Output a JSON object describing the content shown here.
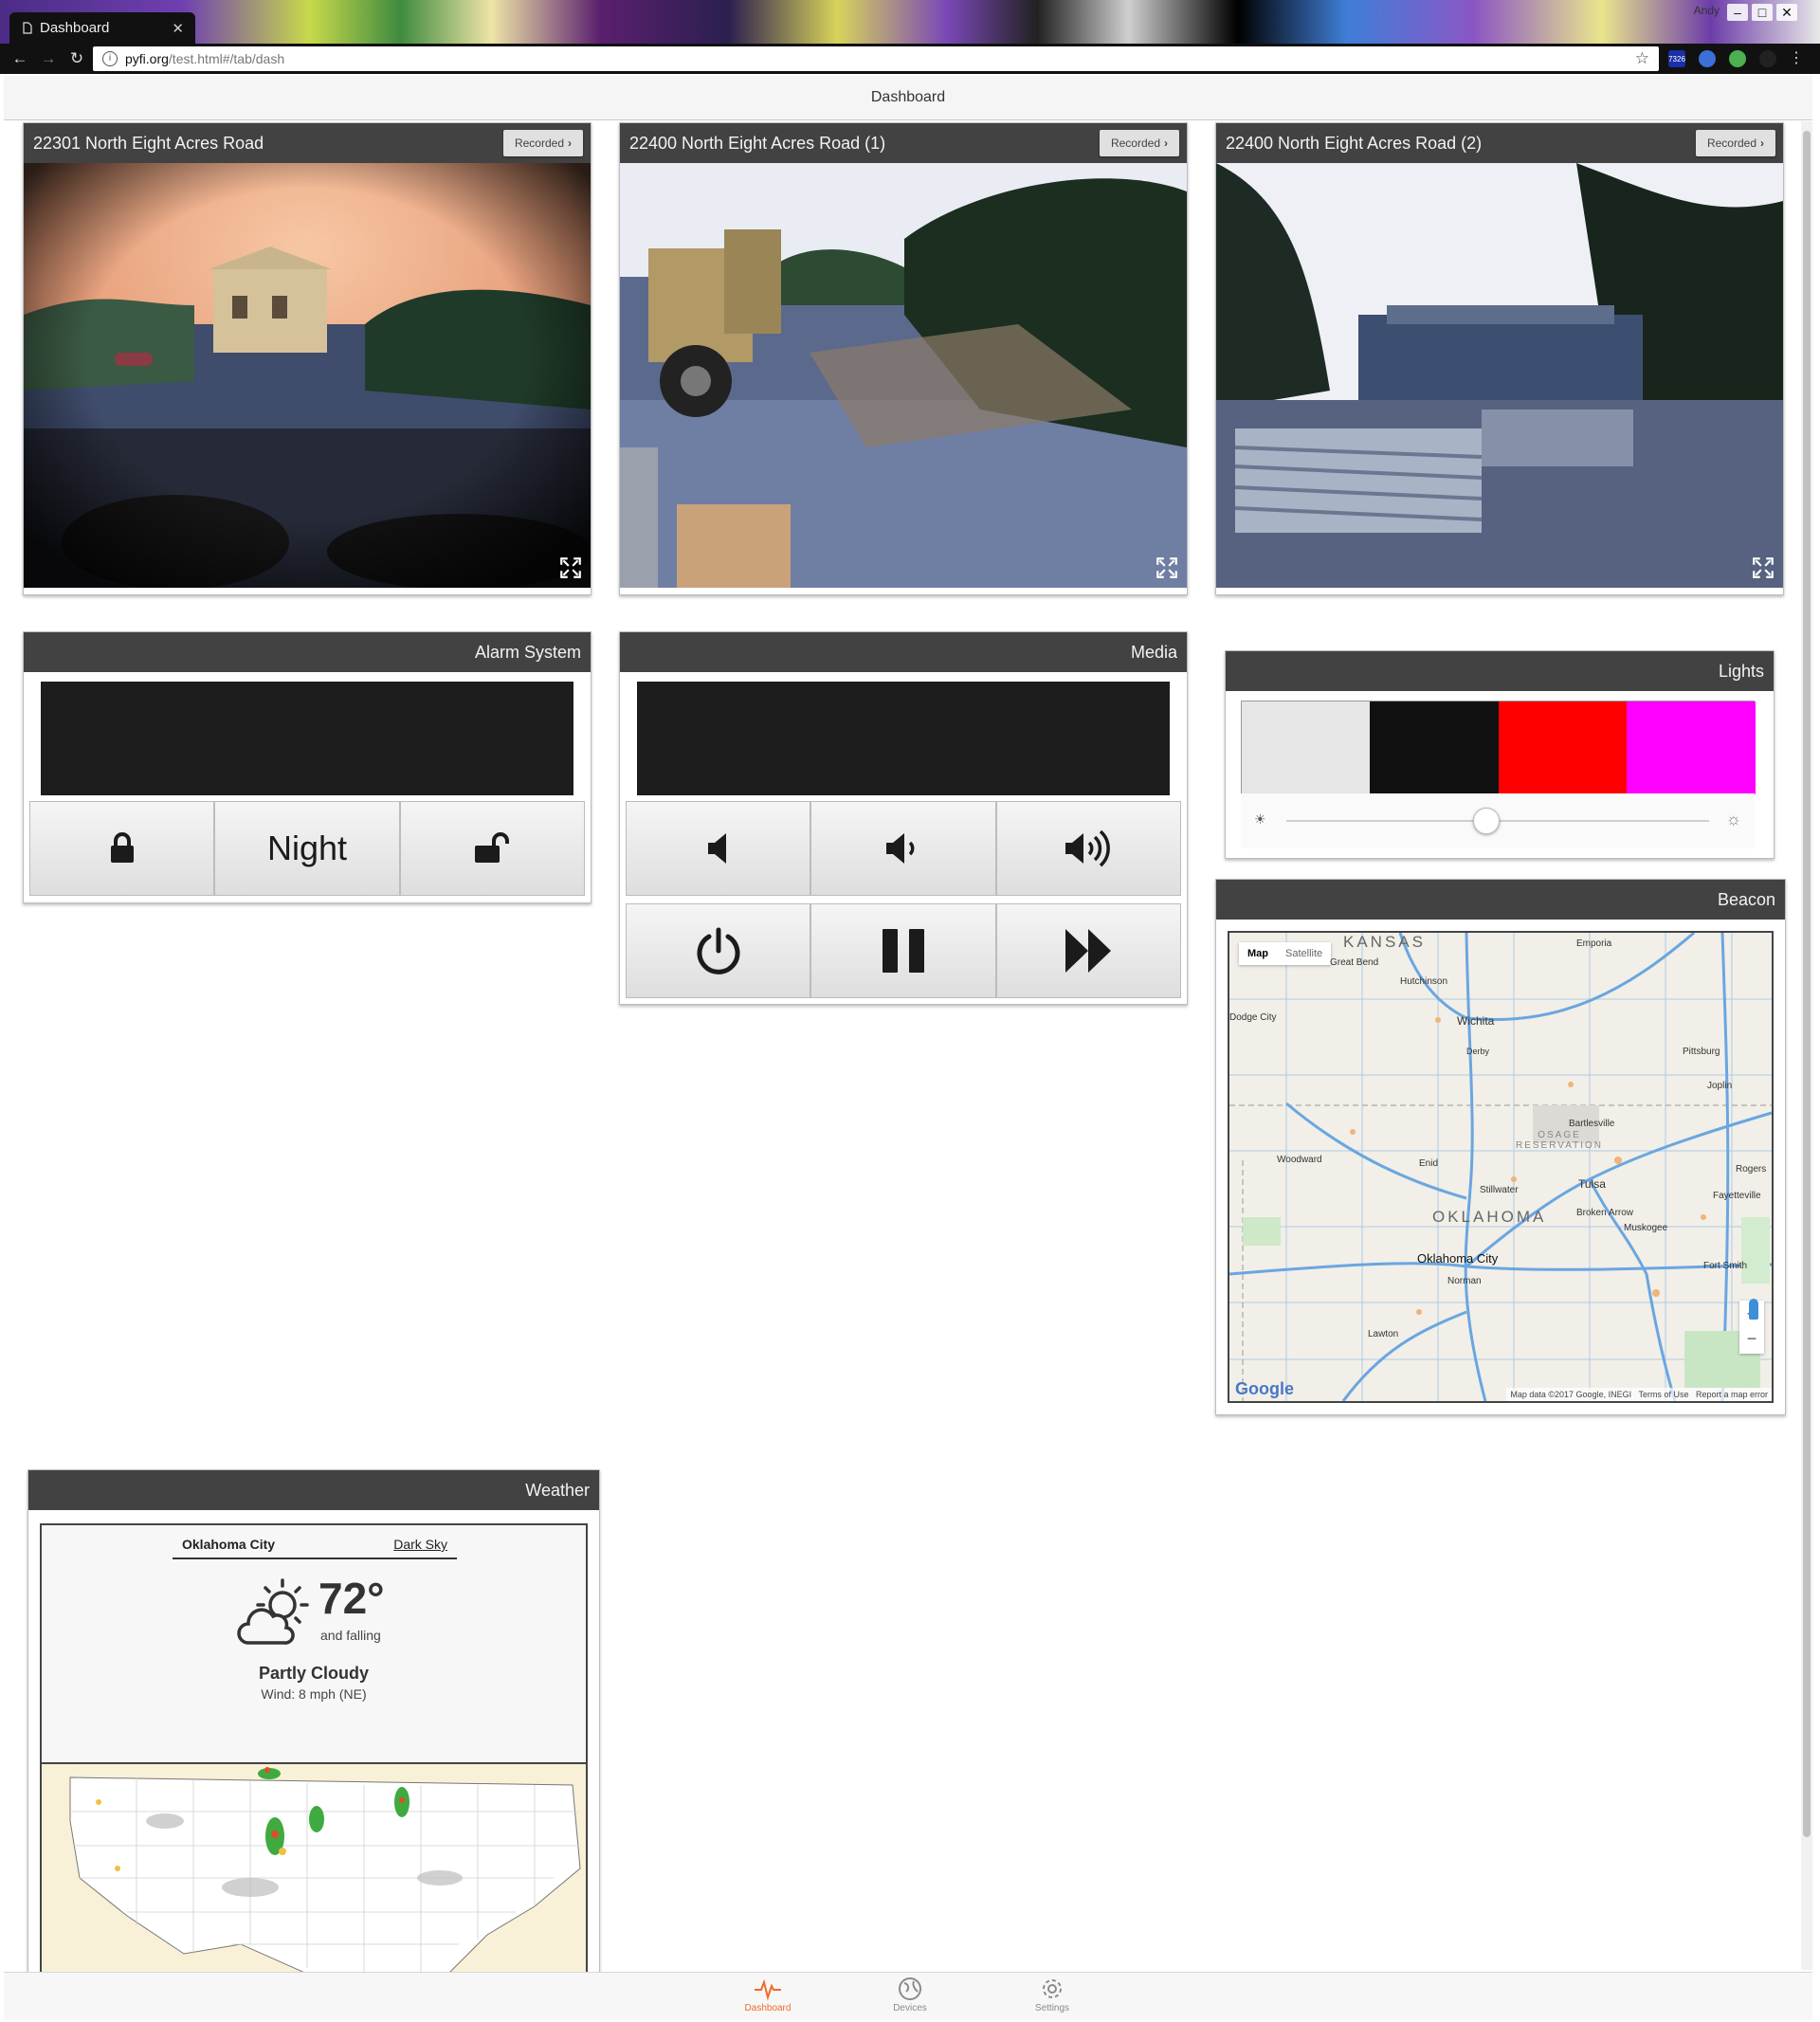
{
  "browser": {
    "tab_title": "Dashboard",
    "url_host": "pyfi.org",
    "url_path": "/test.html#/tab/dash",
    "user": "Andy",
    "ext_badge": "7326"
  },
  "header": {
    "title": "Dashboard"
  },
  "cameras": [
    {
      "title": "22301 North Eight Acres Road",
      "button": "Recorded"
    },
    {
      "title": "22400 North Eight Acres Road (1)",
      "button": "Recorded"
    },
    {
      "title": "22400 North Eight Acres Road (2)",
      "button": "Recorded"
    }
  ],
  "alarm": {
    "title": "Alarm System",
    "mode_label": "Night"
  },
  "media": {
    "title": "Media"
  },
  "lights": {
    "title": "Lights",
    "swatches": [
      "#e6e6e6",
      "#111111",
      "#ff0000",
      "#ff00ff"
    ],
    "brightness": 0.47
  },
  "beacon": {
    "title": "Beacon",
    "map_tab": "Map",
    "satellite_tab": "Satellite",
    "states": [
      "KANSAS",
      "OKLAHOMA"
    ],
    "reservation": "OSAGE\nRESERVATION",
    "cities": [
      "Emporia",
      "Great Bend",
      "Hutchinson",
      "Dodge City",
      "Wichita",
      "Derby",
      "Pittsburg",
      "Joplin",
      "Bartlesville",
      "Woodward",
      "Enid",
      "Rogers",
      "Stillwater",
      "Tulsa",
      "Fayetteville",
      "Broken Arrow",
      "Muskogee",
      "Oklahoma City",
      "Fort Smith",
      "Norman",
      "Lawton"
    ],
    "attribution": "Map data ©2017 Google, INEGI",
    "terms": "Terms of Use",
    "report": "Report a map error",
    "logo": "Google",
    "zoom_in": "+",
    "zoom_out": "−"
  },
  "weather": {
    "title": "Weather",
    "location": "Oklahoma City",
    "source": "Dark Sky",
    "temperature": "72°",
    "trend": "and falling",
    "summary": "Partly Cloudy",
    "wind": "Wind: 8 mph (NE)"
  },
  "bottom_nav": [
    {
      "label": "Dashboard"
    },
    {
      "label": "Devices"
    },
    {
      "label": "Settings"
    }
  ],
  "colors": {
    "accent": "#ef6c2b",
    "panel_header": "#424242"
  }
}
